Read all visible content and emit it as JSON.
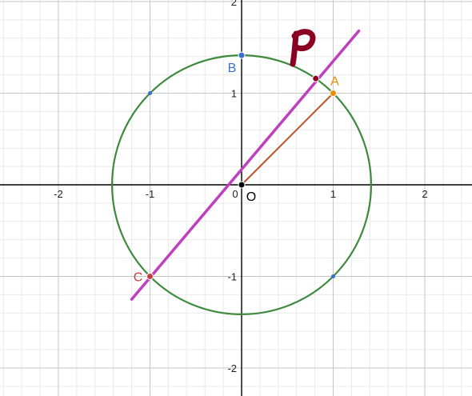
{
  "colors": {
    "minor_grid": "#e9e9e9",
    "major_grid": "#c6c6c6",
    "axis": "#000000",
    "circle": "#3d8a3d",
    "line": "#bf3fbf",
    "segment": "#c0502a",
    "point_A": "#f08c00",
    "point_B": "#3b6fd4",
    "point_C": "#c94040",
    "point_O": "#000000",
    "point_P": "#8b0022",
    "helper_points": "#3b6fd4"
  },
  "axes": {
    "x_ticks": [
      -2,
      -1,
      0,
      1,
      2
    ],
    "y_ticks": [
      -2,
      -1,
      1,
      2
    ],
    "x_tick_labels": [
      "-2",
      "-1",
      "0",
      "1",
      "2"
    ],
    "y_tick_labels": [
      "-2",
      "-1",
      "1",
      "2"
    ]
  },
  "circle": {
    "center": [
      0,
      0
    ],
    "radius": 1.414
  },
  "line": {
    "from": [
      -1.2,
      -1.25
    ],
    "to": [
      1.28,
      1.68
    ]
  },
  "segment": {
    "from": [
      0,
      0
    ],
    "to": [
      1,
      1
    ]
  },
  "points": [
    {
      "name": "A",
      "label": "A",
      "x": 1,
      "y": 1,
      "color": "#f08c00",
      "label_pos": "above"
    },
    {
      "name": "B",
      "label": "B",
      "x": 0,
      "y": 1.414,
      "color": "#3b6fd4",
      "label_pos": "below-left"
    },
    {
      "name": "C",
      "label": "C",
      "x": -1,
      "y": -1,
      "color": "#c94040",
      "label_pos": "left"
    },
    {
      "name": "O",
      "label": "O",
      "x": 0,
      "y": 0,
      "color": "#000000",
      "label_pos": "below-right"
    },
    {
      "name": "intersection",
      "label": "",
      "x": 0.81,
      "y": 1.16,
      "color": "#8b0022",
      "label_pos": "none"
    }
  ],
  "helper_points": [
    {
      "x": -1,
      "y": 1
    },
    {
      "x": 1,
      "y": -1
    }
  ],
  "handwritten": {
    "text": "P",
    "color": "#8b0022"
  }
}
